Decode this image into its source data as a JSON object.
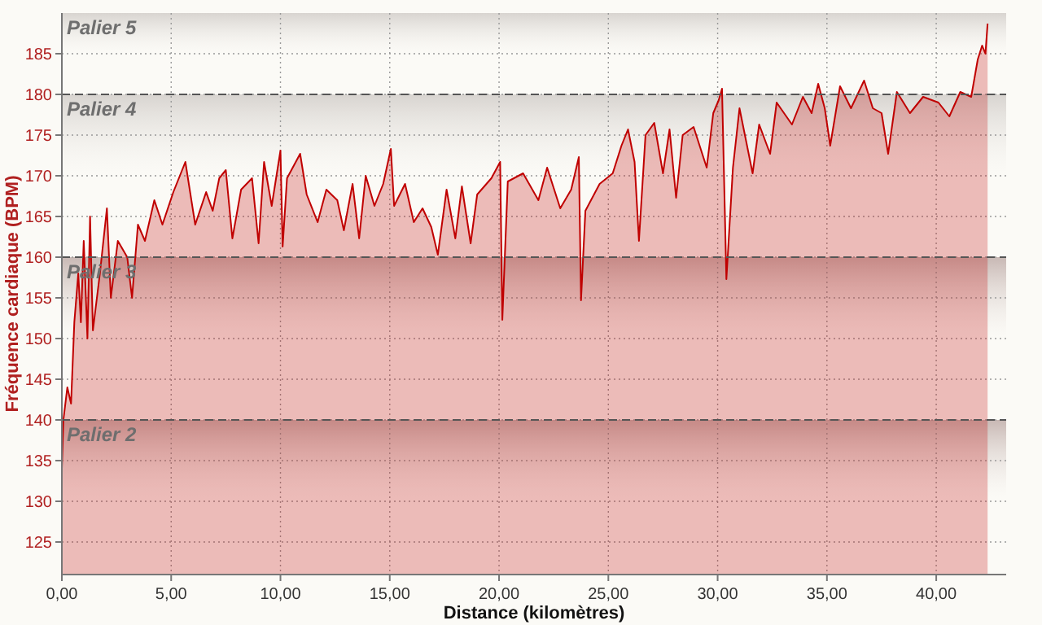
{
  "chart_data": {
    "type": "area",
    "xlabel": "Distance (kilomètres)",
    "ylabel": "Fréquence cardiaque (BPM)",
    "xlim": [
      0,
      43.2
    ],
    "xticks": [
      {
        "value": 0,
        "label": "0,00"
      },
      {
        "value": 5,
        "label": "5,00"
      },
      {
        "value": 10,
        "label": "10,00"
      },
      {
        "value": 15,
        "label": "15,00"
      },
      {
        "value": 20,
        "label": "20,00"
      },
      {
        "value": 25,
        "label": "25,00"
      },
      {
        "value": 30,
        "label": "30,00"
      },
      {
        "value": 35,
        "label": "35,00"
      },
      {
        "value": 40,
        "label": "40,00"
      }
    ],
    "ylim": [
      121,
      190
    ],
    "yticks": [
      125,
      130,
      135,
      140,
      145,
      150,
      155,
      160,
      165,
      170,
      175,
      180,
      185
    ],
    "grid": true,
    "bands": [
      {
        "axis": "y",
        "from": 180,
        "to": 190,
        "label": "Palier 5",
        "color": "#d8d4d0"
      },
      {
        "axis": "y",
        "from": 160,
        "to": 180,
        "label": "Palier 4",
        "color": "#d8d4d0"
      },
      {
        "axis": "y",
        "from": 140,
        "to": 160,
        "label": "Palier 3",
        "color": "#c8b8b4"
      },
      {
        "axis": "y",
        "from": 121,
        "to": 140,
        "label": "Palier 2",
        "color": "#c8b8b4"
      }
    ],
    "series": [
      {
        "color": "#c00000",
        "x": [
          0,
          0.07,
          0.25,
          0.42,
          0.57,
          0.75,
          0.87,
          1.0,
          1.17,
          1.29,
          1.42,
          1.74,
          2.06,
          2.24,
          2.56,
          2.99,
          3.21,
          3.48,
          3.8,
          4.23,
          4.6,
          5.1,
          5.65,
          6.1,
          6.6,
          6.9,
          7.2,
          7.5,
          7.8,
          8.2,
          8.7,
          9.0,
          9.25,
          9.6,
          10.0,
          10.1,
          10.3,
          10.9,
          11.2,
          11.7,
          12.1,
          12.6,
          12.9,
          13.3,
          13.6,
          13.9,
          14.3,
          14.7,
          15.05,
          15.2,
          15.7,
          16.1,
          16.5,
          16.9,
          17.2,
          17.6,
          18.0,
          18.3,
          18.7,
          19.0,
          19.65,
          20.05,
          20.15,
          20.4,
          21.1,
          21.8,
          22.2,
          22.8,
          23.3,
          23.65,
          23.75,
          23.95,
          24.6,
          25.2,
          25.6,
          25.9,
          26.2,
          26.4,
          26.7,
          27.1,
          27.5,
          27.8,
          28.1,
          28.4,
          28.9,
          29.5,
          29.8,
          30.05,
          30.2,
          30.4,
          30.7,
          31.0,
          31.3,
          31.6,
          31.9,
          32.4,
          32.7,
          33.4,
          33.9,
          34.3,
          34.6,
          34.9,
          35.15,
          35.6,
          36.1,
          36.7,
          37.1,
          37.5,
          37.8,
          38.2,
          38.8,
          39.4,
          40.1,
          40.6,
          41.1,
          41.6,
          41.9,
          42.1,
          42.25,
          42.35
        ],
        "values": [
          134,
          140,
          144,
          142,
          152,
          158,
          152,
          162,
          150,
          165,
          151,
          158,
          166,
          155,
          162,
          160,
          155,
          164,
          162,
          167,
          164,
          168,
          171.7,
          164,
          168,
          165.7,
          169.7,
          170.7,
          162.3,
          168.3,
          169.7,
          161.7,
          171.7,
          166.3,
          173.1,
          161.3,
          169.7,
          172.7,
          167.7,
          164.3,
          168.3,
          167,
          163.3,
          169,
          162.3,
          170,
          166.3,
          169,
          173.3,
          166.3,
          169,
          164.3,
          166,
          163.7,
          160.3,
          168.3,
          162.3,
          168.7,
          161.7,
          167.7,
          169.7,
          171.7,
          152.3,
          169.3,
          170.3,
          167,
          171,
          166,
          168.3,
          172.3,
          154.7,
          165.7,
          169,
          170.3,
          173.7,
          175.7,
          171.7,
          162,
          175,
          176.5,
          170.3,
          175.7,
          167.3,
          175,
          176,
          171,
          177.7,
          179.3,
          180.7,
          157.3,
          171,
          178.3,
          174.3,
          170.3,
          176.3,
          172.7,
          179,
          176.3,
          179.7,
          177.7,
          181.3,
          178.3,
          173.7,
          181,
          178.3,
          181.7,
          178.3,
          177.7,
          172.7,
          180.3,
          177.7,
          179.7,
          179,
          177.3,
          180.3,
          179.7,
          184.3,
          186,
          185,
          188.7
        ]
      }
    ]
  }
}
